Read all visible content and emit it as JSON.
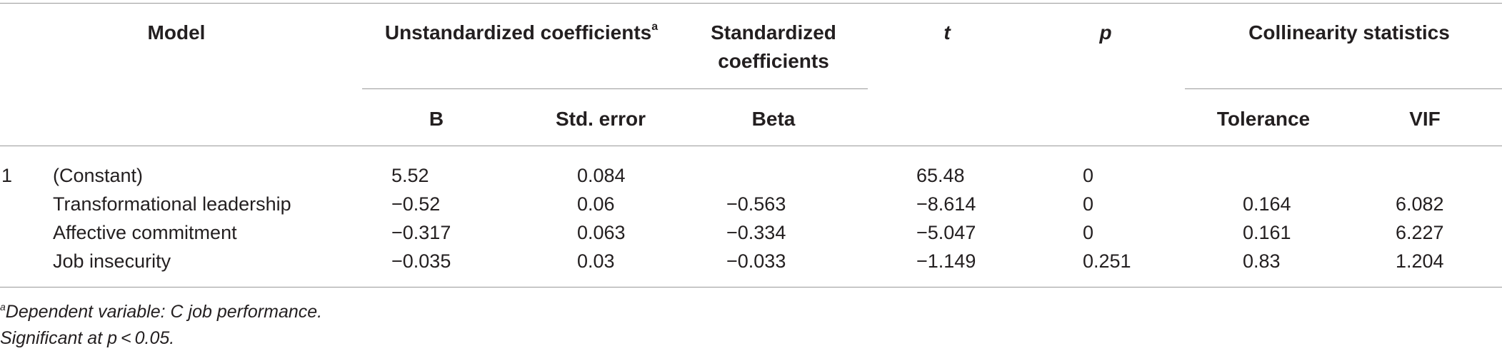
{
  "header": {
    "model": "Model",
    "unstd": "Unstandardized coefficients",
    "unstd_sup": "a",
    "std_line1": "Standardized",
    "std_line2": "coefficients",
    "t": "t",
    "p": "p",
    "collin": "Collinearity statistics",
    "b": "B",
    "se": "Std. error",
    "beta": "Beta",
    "tol": "Tolerance",
    "vif": "VIF"
  },
  "rows": [
    {
      "num": "1",
      "label": "(Constant)",
      "b": "5.52",
      "se": "0.084",
      "beta": "",
      "t": "65.48",
      "p": "0",
      "tol": "",
      "vif": ""
    },
    {
      "num": "",
      "label": "Transformational leadership",
      "b": "−0.52",
      "se": "0.06",
      "beta": "−0.563",
      "t": "−8.614",
      "p": "0",
      "tol": "0.164",
      "vif": "6.082"
    },
    {
      "num": "",
      "label": "Affective commitment",
      "b": "−0.317",
      "se": "0.063",
      "beta": "−0.334",
      "t": "−5.047",
      "p": "0",
      "tol": "0.161",
      "vif": "6.227"
    },
    {
      "num": "",
      "label": "Job insecurity",
      "b": "−0.035",
      "se": "0.03",
      "beta": "−0.033",
      "t": "−1.149",
      "p": "0.251",
      "tol": "0.83",
      "vif": "1.204"
    }
  ],
  "footnotes": {
    "a_sup": "a",
    "a_text": "Dependent variable: C job performance.",
    "sig": "Significant at p < 0.05."
  }
}
